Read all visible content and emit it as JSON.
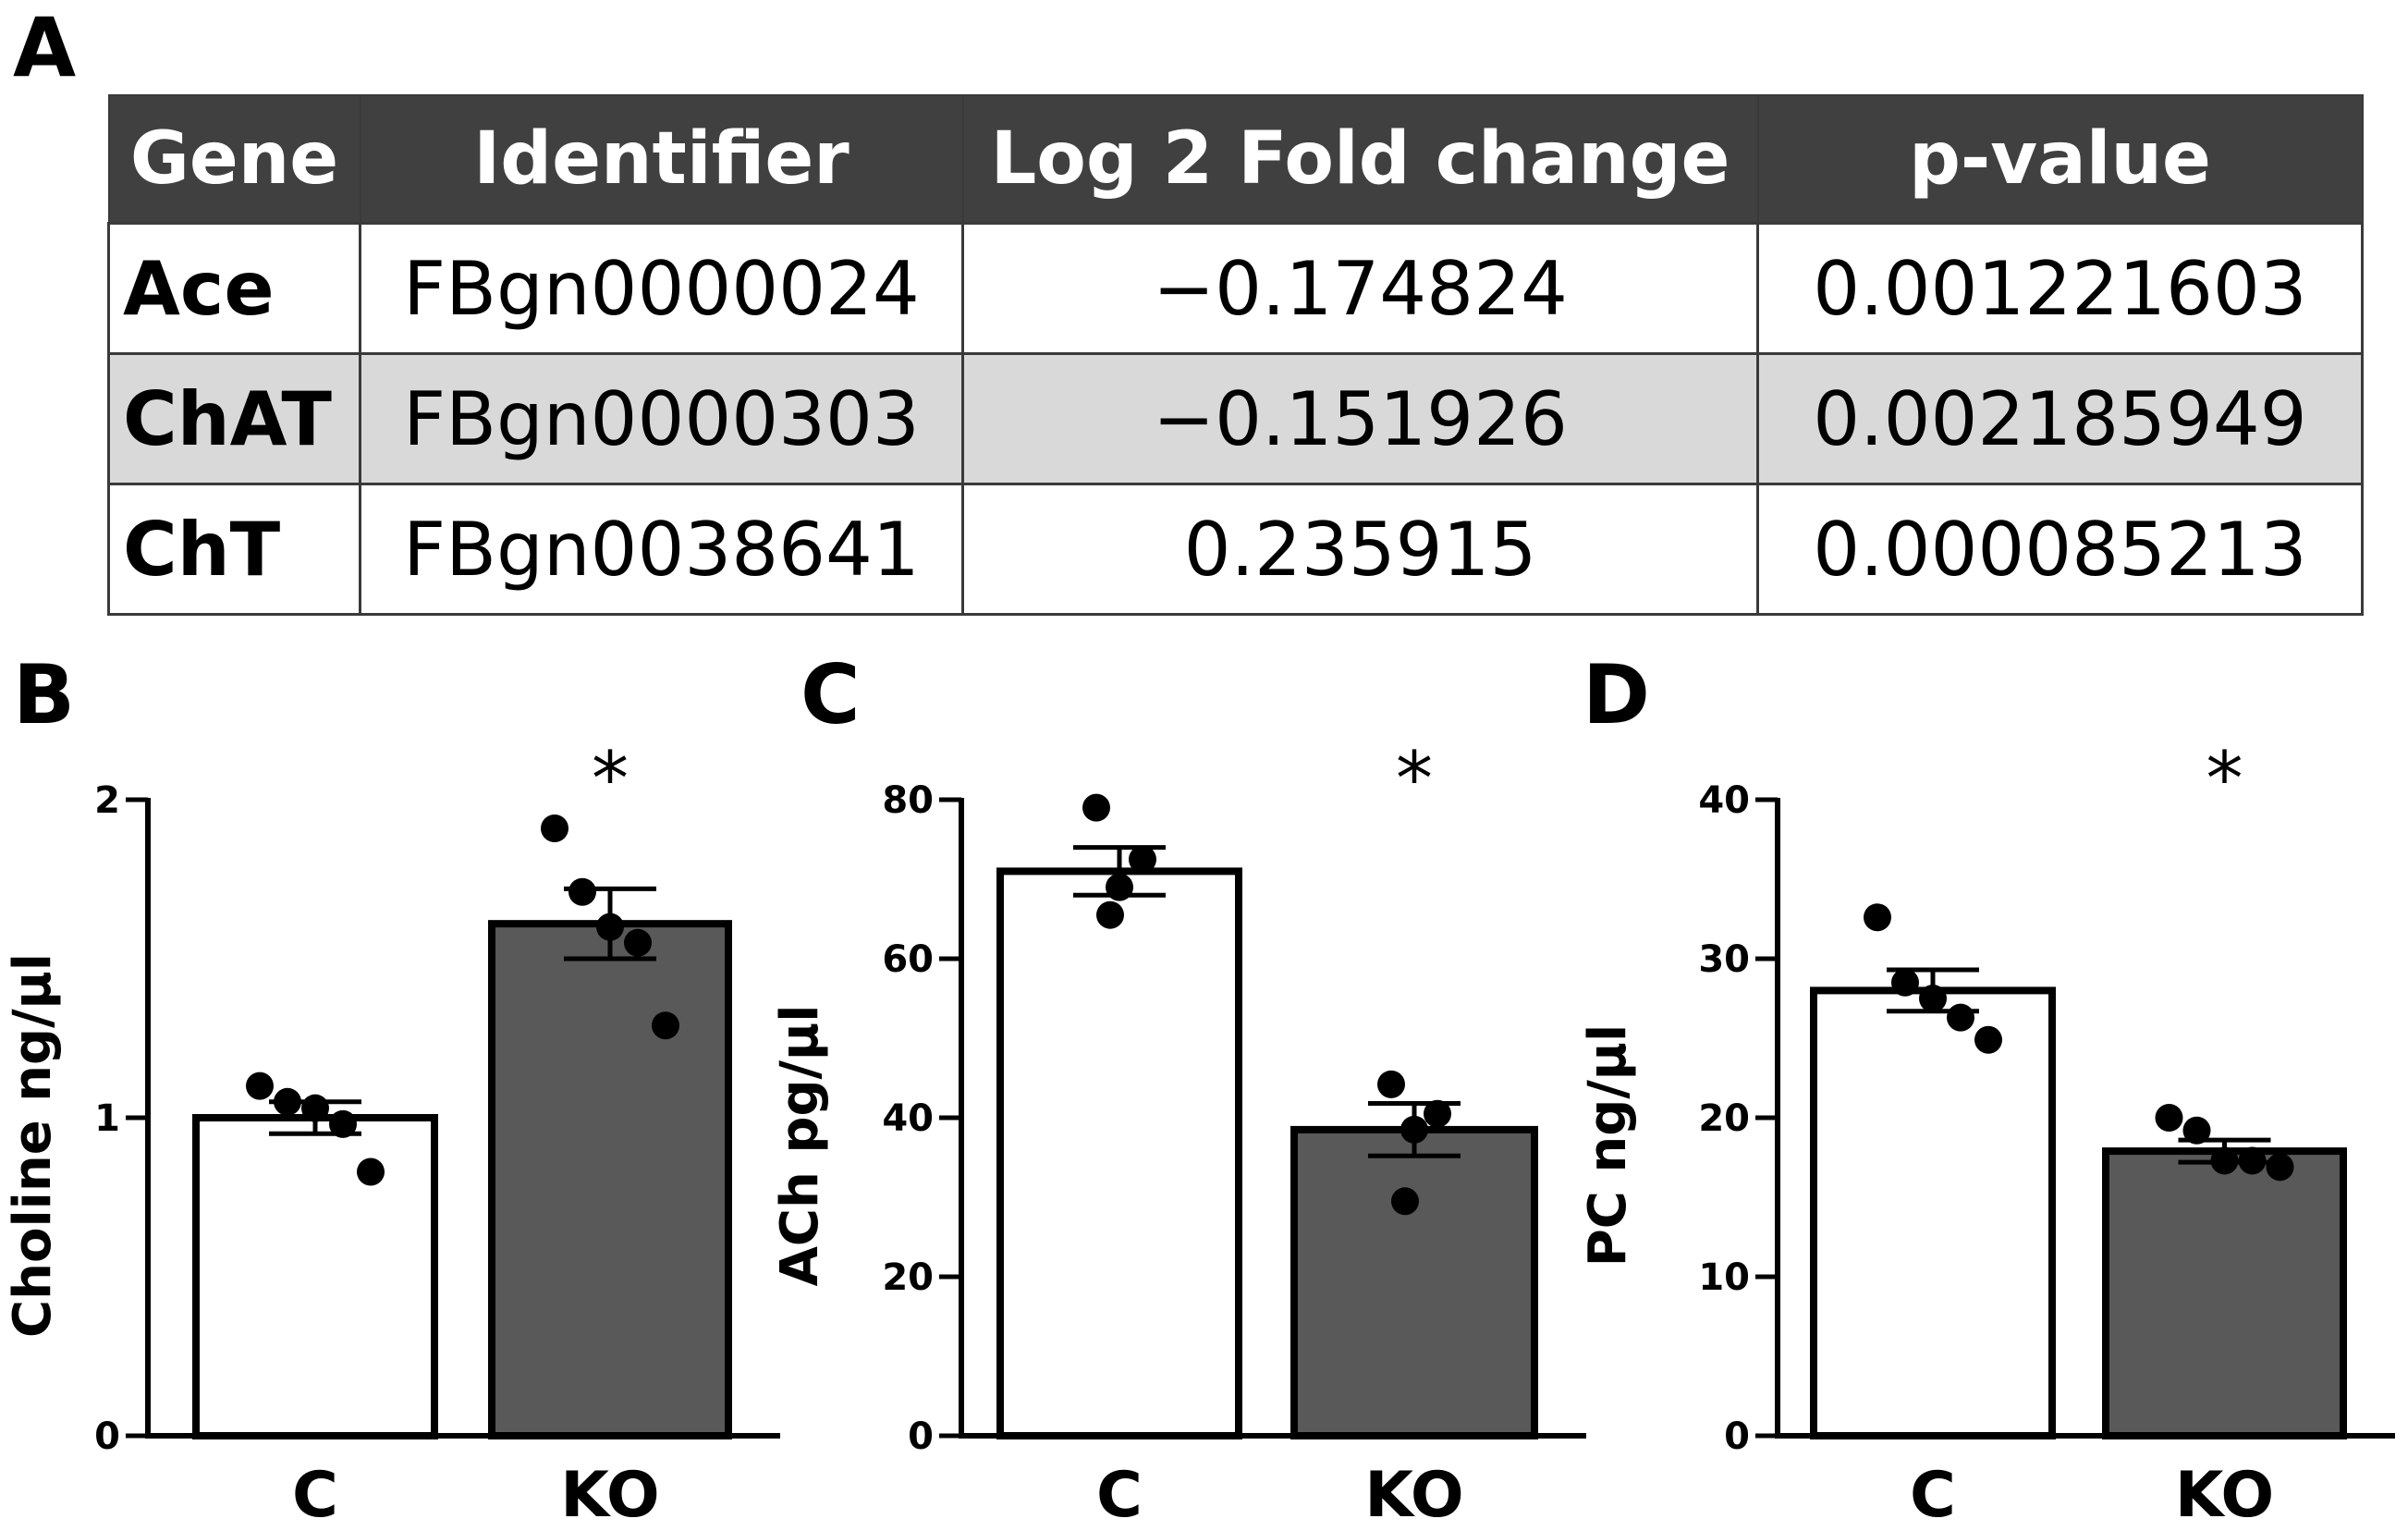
{
  "panel_labels": {
    "a": "A",
    "b": "B",
    "c": "C",
    "d": "D"
  },
  "table": {
    "headers": [
      "Gene",
      "Identifier",
      "Log 2 Fold change",
      "p-value"
    ],
    "rows": [
      [
        "Ace",
        "FBgn0000024",
        "−0.174824",
        "0.001221603"
      ],
      [
        "ChAT",
        "FBgn0000303",
        "−0.151926",
        "0.002185949"
      ],
      [
        "ChT",
        "FBgn0038641",
        "0.235915",
        "0.000085213"
      ]
    ],
    "shaded_row_color": "#d9d9d9",
    "header_color": "#404040"
  },
  "colors": {
    "control_bar": "#ffffff",
    "ko_bar": "#595959",
    "outline": "#000000"
  },
  "chart_data": [
    {
      "type": "bar",
      "panel": "B",
      "ylabel": "Choline ng/μl",
      "ylim": [
        0,
        2
      ],
      "yticks": [
        0,
        1,
        2
      ],
      "categories": [
        "C",
        "KO"
      ],
      "values": [
        1.0,
        1.61
      ],
      "sem": [
        0.05,
        0.11
      ],
      "points": [
        [
          1.1,
          1.05,
          1.03,
          0.98,
          0.83
        ],
        [
          1.91,
          1.71,
          1.6,
          1.55,
          1.29
        ]
      ],
      "significance": [
        "",
        "*"
      ]
    },
    {
      "type": "bar",
      "panel": "C",
      "ylabel": "ACh pg/μl",
      "ylim": [
        0,
        80
      ],
      "yticks": [
        0,
        20,
        40,
        60,
        80
      ],
      "categories": [
        "C",
        "KO"
      ],
      "values": [
        71,
        38.5
      ],
      "sem": [
        3,
        3.3
      ],
      "points": [
        [
          79,
          72.5,
          69,
          65.5
        ],
        [
          44.2,
          40.5,
          38.5,
          29.5
        ]
      ],
      "significance": [
        "",
        "*"
      ]
    },
    {
      "type": "bar",
      "panel": "D",
      "ylabel": "PC ng/μl",
      "ylim": [
        0,
        40
      ],
      "yticks": [
        0,
        10,
        20,
        30,
        40
      ],
      "categories": [
        "C",
        "KO"
      ],
      "values": [
        28,
        17.9
      ],
      "sem": [
        1.3,
        0.7
      ],
      "points": [
        [
          32.6,
          28.5,
          27.5,
          26.3,
          24.9
        ],
        [
          20,
          19.2,
          17.3,
          17.3,
          16.9
        ]
      ],
      "significance": [
        "",
        "*"
      ]
    }
  ]
}
